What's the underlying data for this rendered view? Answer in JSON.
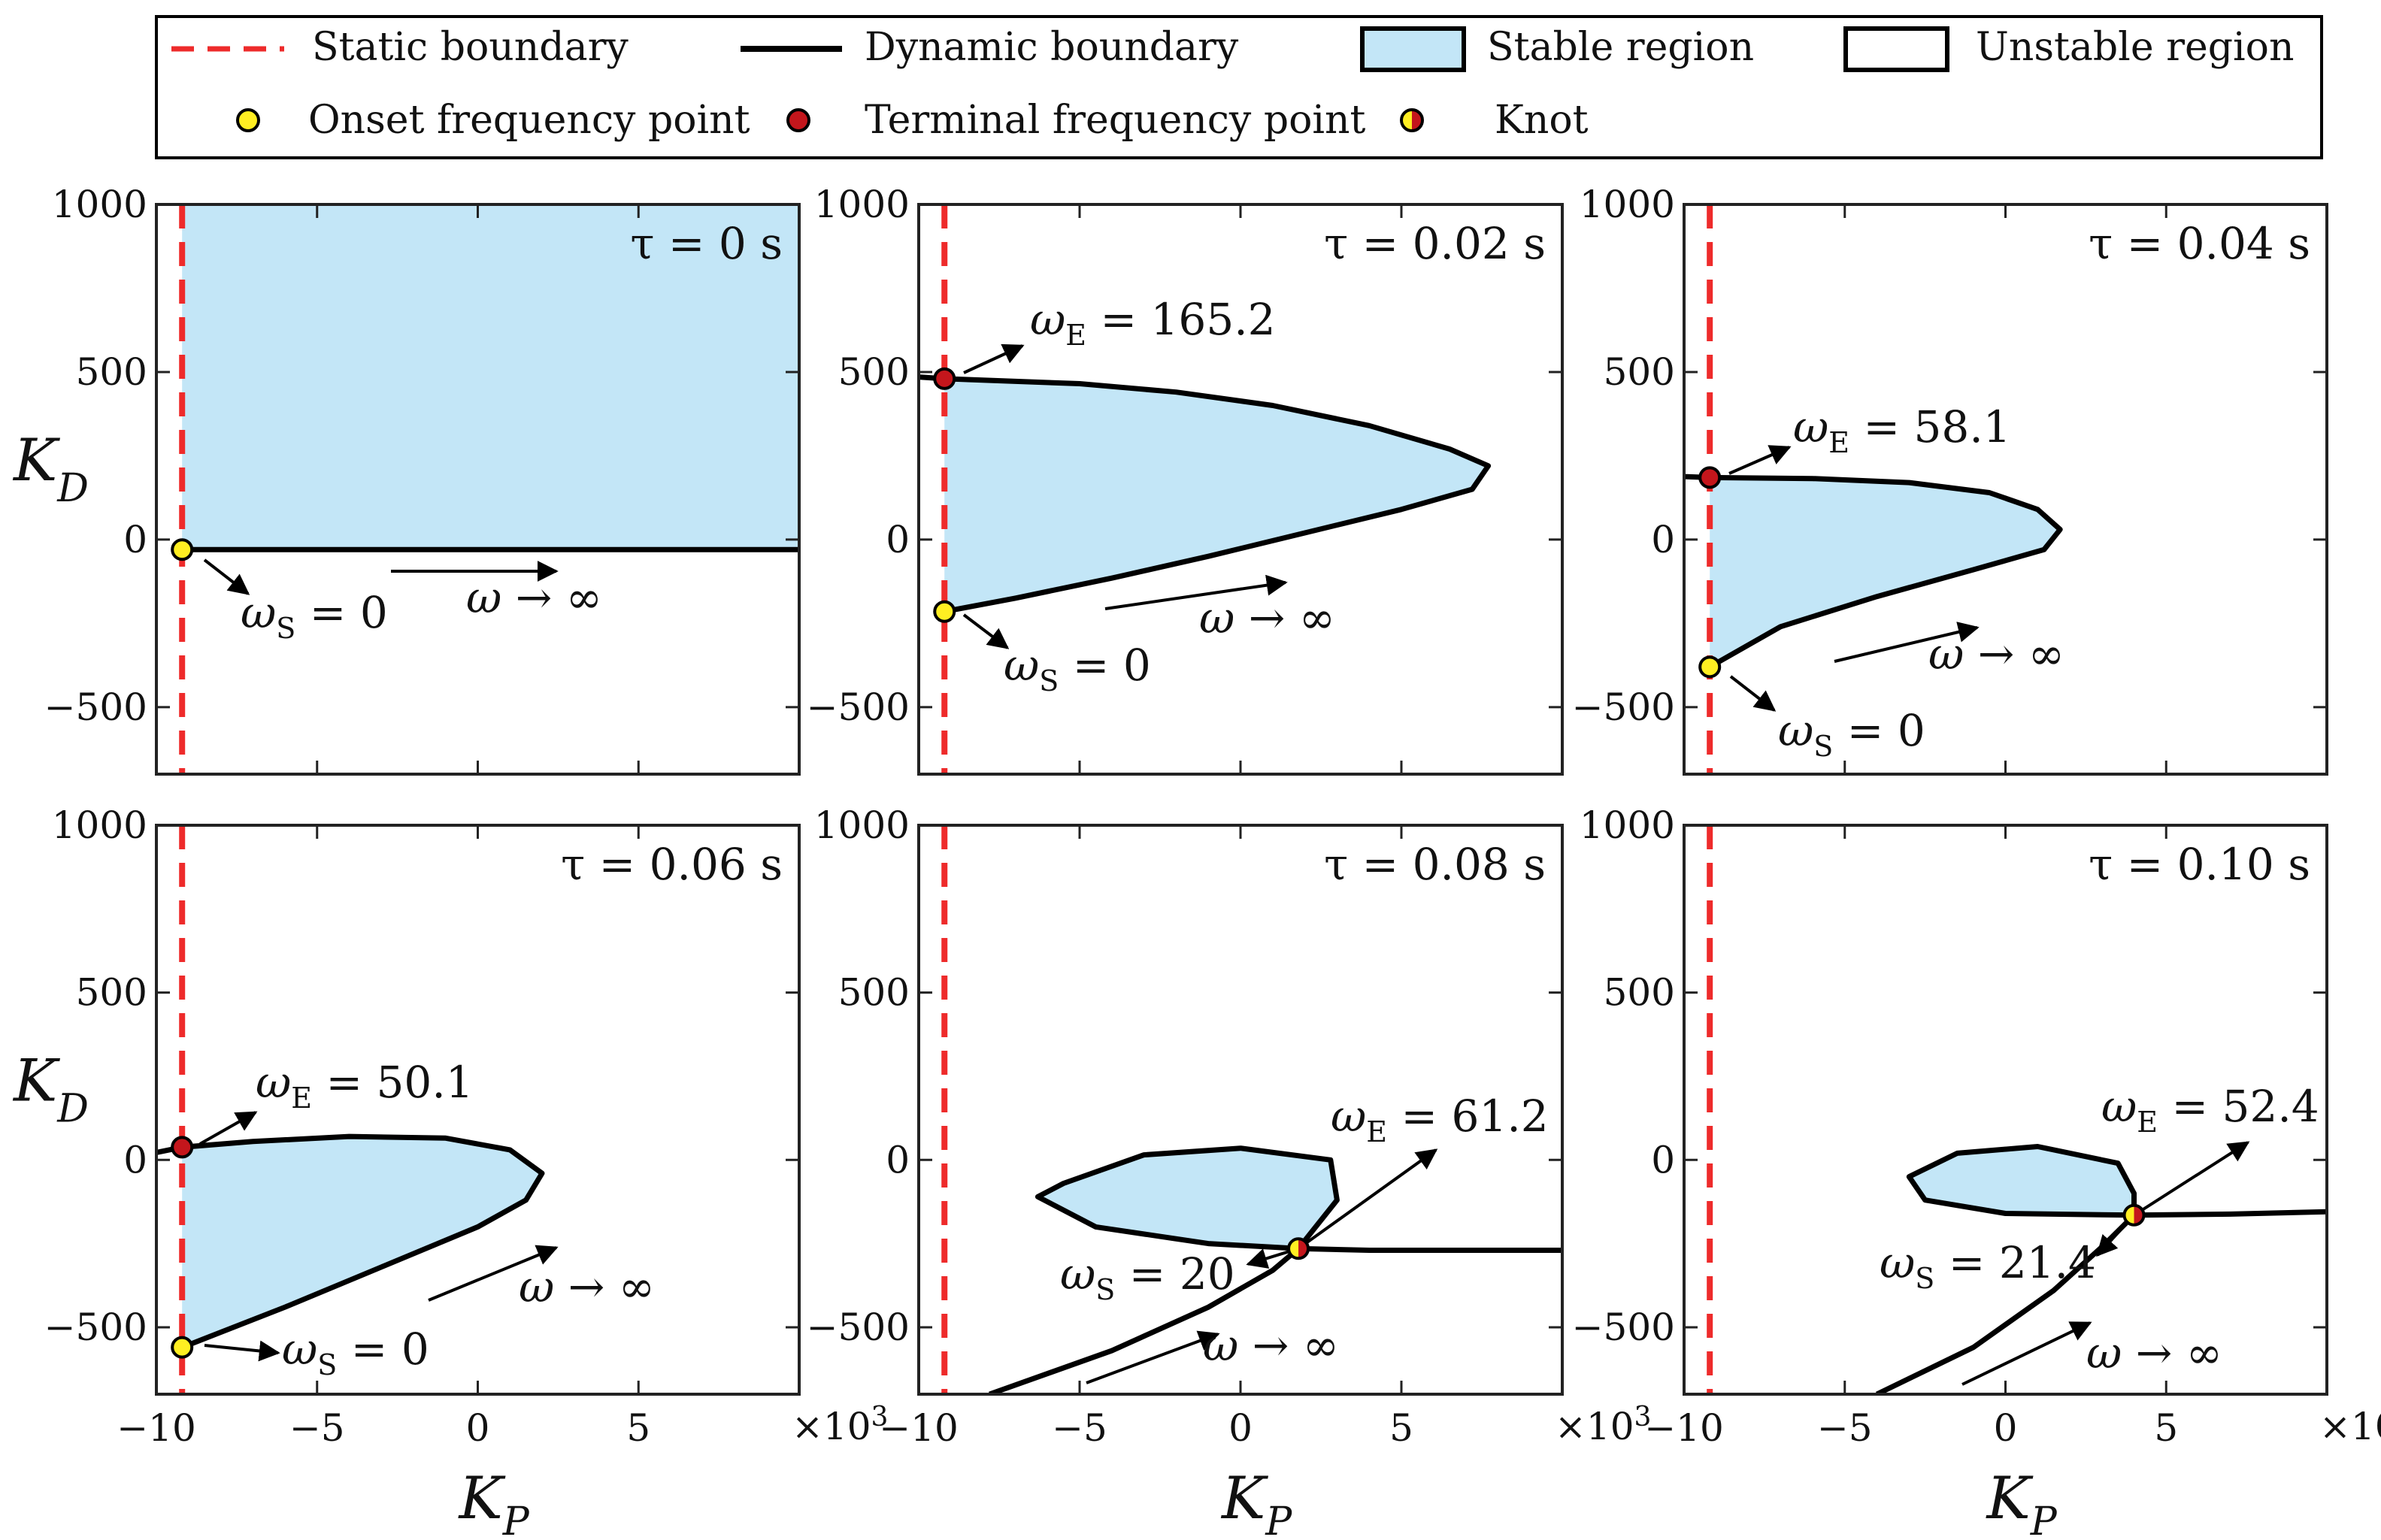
{
  "legend": {
    "items": [
      {
        "key": "static",
        "label": "Static boundary"
      },
      {
        "key": "dynamic",
        "label": "Dynamic boundary"
      },
      {
        "key": "stable",
        "label": "Stable region"
      },
      {
        "key": "unstable",
        "label": "Unstable region"
      },
      {
        "key": "onset",
        "label": "Onset frequency point"
      },
      {
        "key": "terminal",
        "label": "Terminal frequency point"
      },
      {
        "key": "knot",
        "label": "Knot"
      }
    ]
  },
  "colors": {
    "static": "#ee2b2b",
    "stable": "#c3e6f7",
    "onset": "#ffee22",
    "terminal": "#c4161c",
    "curve": "#000000"
  },
  "axes": {
    "xlabel": "K",
    "xlabel_sub": "P",
    "ylabel": "K",
    "ylabel_sub": "D",
    "xlim": [
      -10000,
      10000
    ],
    "ylim": [
      -700,
      1000
    ],
    "xticks": [
      -10,
      -5,
      0,
      5
    ],
    "xtick_labels": [
      "−10",
      "−5",
      "0",
      "5"
    ],
    "yticks": [
      -500,
      0,
      500,
      1000
    ],
    "ytick_labels": [
      "−500",
      "0",
      "500",
      "1000"
    ],
    "exponent_label": "×10",
    "exponent_power": "3",
    "static_kp": -9200
  },
  "chart_data": [
    {
      "type": "area",
      "title": "τ = 0 s",
      "tau_label": "τ = 0 s",
      "stable_region": [
        [
          -9200,
          1000
        ],
        [
          10000,
          1000
        ],
        [
          10000,
          -30
        ],
        [
          -9200,
          -30
        ]
      ],
      "curve": [
        [
          -9200,
          -30
        ],
        [
          -5000,
          -30
        ],
        [
          0,
          -30
        ],
        [
          5000,
          -30
        ],
        [
          10000,
          -30
        ]
      ],
      "curve2": null,
      "onset": {
        "kp": -9200,
        "kd": -30,
        "label": "ω",
        "sub": "S",
        "value": "= 0"
      },
      "terminal": null,
      "knot": null,
      "omega_label": "ω → ∞"
    },
    {
      "type": "area",
      "title": "τ = 0.02 s",
      "tau_label": "τ = 0.02 s",
      "stable_region": [
        [
          -9200,
          480
        ],
        [
          -5000,
          465
        ],
        [
          -2000,
          440
        ],
        [
          1000,
          400
        ],
        [
          4000,
          340
        ],
        [
          6500,
          270
        ],
        [
          7700,
          220
        ],
        [
          7200,
          150
        ],
        [
          5000,
          90
        ],
        [
          2000,
          20
        ],
        [
          -1000,
          -50
        ],
        [
          -4000,
          -115
        ],
        [
          -7000,
          -175
        ],
        [
          -9200,
          -215
        ]
      ],
      "curve": [
        [
          -10000,
          485
        ],
        [
          -9200,
          480
        ],
        [
          -5000,
          465
        ],
        [
          -2000,
          440
        ],
        [
          1000,
          400
        ],
        [
          4000,
          340
        ],
        [
          6500,
          270
        ],
        [
          7700,
          220
        ],
        [
          7200,
          150
        ],
        [
          5000,
          90
        ],
        [
          2000,
          20
        ],
        [
          -1000,
          -50
        ],
        [
          -4000,
          -115
        ],
        [
          -7000,
          -175
        ],
        [
          -9200,
          -215
        ]
      ],
      "curve2": null,
      "onset": {
        "kp": -9200,
        "kd": -215,
        "label": "ω",
        "sub": "S",
        "value": "= 0"
      },
      "terminal": {
        "kp": -9200,
        "kd": 480,
        "label": "ω",
        "sub": "E",
        "value": "= 165.2"
      },
      "knot": null,
      "omega_label": "ω → ∞"
    },
    {
      "type": "area",
      "title": "τ = 0.04 s",
      "tau_label": "τ = 0.04 s",
      "stable_region": [
        [
          -9200,
          185
        ],
        [
          -6000,
          182
        ],
        [
          -3000,
          170
        ],
        [
          -500,
          140
        ],
        [
          1000,
          90
        ],
        [
          1700,
          30
        ],
        [
          1200,
          -30
        ],
        [
          -1000,
          -90
        ],
        [
          -4000,
          -170
        ],
        [
          -7000,
          -260
        ],
        [
          -9200,
          -380
        ]
      ],
      "curve": [
        [
          -10000,
          188
        ],
        [
          -9200,
          185
        ],
        [
          -6000,
          182
        ],
        [
          -3000,
          170
        ],
        [
          -500,
          140
        ],
        [
          1000,
          90
        ],
        [
          1700,
          30
        ],
        [
          1200,
          -30
        ],
        [
          -1000,
          -90
        ],
        [
          -4000,
          -170
        ],
        [
          -7000,
          -260
        ],
        [
          -9200,
          -380
        ]
      ],
      "curve2": null,
      "onset": {
        "kp": -9200,
        "kd": -380,
        "label": "ω",
        "sub": "S",
        "value": "= 0"
      },
      "terminal": {
        "kp": -9200,
        "kd": 185,
        "label": "ω",
        "sub": "E",
        "value": "= 58.1"
      },
      "knot": null,
      "omega_label": "ω → ∞"
    },
    {
      "type": "area",
      "title": "τ = 0.06 s",
      "tau_label": "τ = 0.06 s",
      "stable_region": [
        [
          -9200,
          38
        ],
        [
          -7000,
          55
        ],
        [
          -4000,
          70
        ],
        [
          -1000,
          65
        ],
        [
          1000,
          30
        ],
        [
          2000,
          -40
        ],
        [
          1500,
          -120
        ],
        [
          0,
          -200
        ],
        [
          -3000,
          -320
        ],
        [
          -6000,
          -440
        ],
        [
          -9200,
          -560
        ]
      ],
      "curve": [
        [
          -10000,
          22
        ],
        [
          -9200,
          38
        ],
        [
          -7000,
          55
        ],
        [
          -4000,
          70
        ],
        [
          -1000,
          65
        ],
        [
          1000,
          30
        ],
        [
          2000,
          -40
        ],
        [
          1500,
          -120
        ],
        [
          0,
          -200
        ],
        [
          -3000,
          -320
        ],
        [
          -6000,
          -440
        ],
        [
          -9200,
          -560
        ]
      ],
      "curve2": null,
      "onset": {
        "kp": -9200,
        "kd": -560,
        "label": "ω",
        "sub": "S",
        "value": "= 0"
      },
      "terminal": {
        "kp": -9200,
        "kd": 38,
        "label": "ω",
        "sub": "E",
        "value": "= 50.1"
      },
      "knot": null,
      "omega_label": "ω → ∞"
    },
    {
      "type": "area",
      "title": "τ = 0.08 s",
      "tau_label": "τ = 0.08 s",
      "stable_region": [
        [
          1800,
          -265
        ],
        [
          3000,
          -120
        ],
        [
          2800,
          0
        ],
        [
          0,
          35
        ],
        [
          -3000,
          15
        ],
        [
          -5500,
          -70
        ],
        [
          -6300,
          -110
        ],
        [
          -4500,
          -200
        ],
        [
          -1000,
          -250
        ]
      ],
      "curve": [
        [
          1800,
          -265
        ],
        [
          3000,
          -120
        ],
        [
          2800,
          0
        ],
        [
          0,
          35
        ],
        [
          -3000,
          15
        ],
        [
          -5500,
          -70
        ],
        [
          -6300,
          -110
        ],
        [
          -4500,
          -200
        ],
        [
          -1000,
          -250
        ],
        [
          1800,
          -265
        ],
        [
          4000,
          -270
        ],
        [
          7000,
          -270
        ],
        [
          10000,
          -270
        ]
      ],
      "curve2": [
        [
          -7800,
          -700
        ],
        [
          -4000,
          -570
        ],
        [
          -1000,
          -440
        ],
        [
          1000,
          -330
        ],
        [
          1800,
          -265
        ]
      ],
      "onset": null,
      "terminal": null,
      "knot": {
        "kp": 1800,
        "kd": -265
      },
      "knot_s": {
        "label": "ω",
        "sub": "S",
        "value": "= 20"
      },
      "knot_e": {
        "label": "ω",
        "sub": "E",
        "value": "= 61.2"
      },
      "omega_label": "ω → ∞"
    },
    {
      "type": "area",
      "title": "τ = 0.10 s",
      "tau_label": "τ = 0.10 s",
      "stable_region": [
        [
          4000,
          -165
        ],
        [
          4000,
          -100
        ],
        [
          3500,
          -10
        ],
        [
          1000,
          40
        ],
        [
          -1500,
          20
        ],
        [
          -3000,
          -50
        ],
        [
          -2500,
          -120
        ],
        [
          0,
          -160
        ]
      ],
      "curve": [
        [
          4000,
          -165
        ],
        [
          4000,
          -100
        ],
        [
          3500,
          -10
        ],
        [
          1000,
          40
        ],
        [
          -1500,
          20
        ],
        [
          -3000,
          -50
        ],
        [
          -2500,
          -120
        ],
        [
          0,
          -160
        ],
        [
          4000,
          -165
        ],
        [
          7000,
          -162
        ],
        [
          10000,
          -155
        ]
      ],
      "curve2": [
        [
          -4000,
          -700
        ],
        [
          -1000,
          -560
        ],
        [
          1500,
          -390
        ],
        [
          3000,
          -260
        ],
        [
          4000,
          -165
        ]
      ],
      "onset": null,
      "terminal": null,
      "knot": {
        "kp": 4000,
        "kd": -165
      },
      "knot_s": {
        "label": "ω",
        "sub": "S",
        "value": "= 21.4"
      },
      "knot_e": {
        "label": "ω",
        "sub": "E",
        "value": "= 52.4"
      },
      "omega_label": "ω → ∞"
    }
  ]
}
